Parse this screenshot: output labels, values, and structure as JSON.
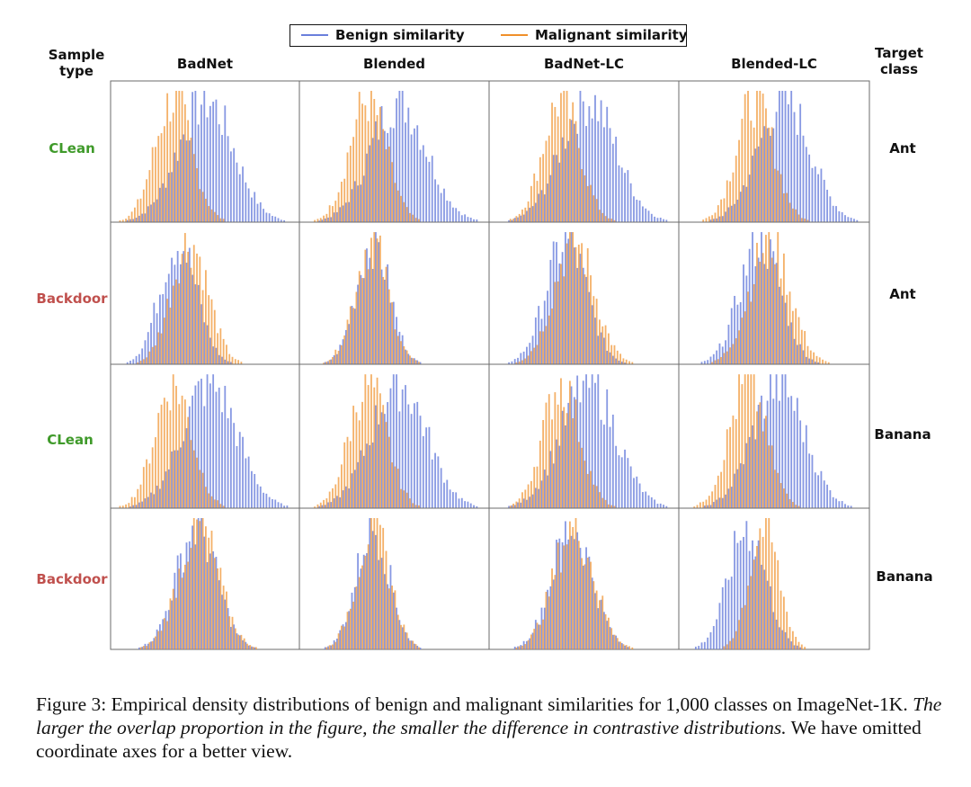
{
  "legend": {
    "benign": "Benign similarity",
    "malignant": "Malignant similarity"
  },
  "headers": {
    "sample_type_line1": "Sample",
    "sample_type_line2": "type",
    "target_class_line1": "Target",
    "target_class_line2": "class",
    "columns": [
      "BadNet",
      "Blended",
      "BadNet-LC",
      "Blended-LC"
    ]
  },
  "rows": [
    {
      "sample_type": "CLean",
      "target_class": "Ant"
    },
    {
      "sample_type": "Backdoor",
      "target_class": "Ant"
    },
    {
      "sample_type": "CLean",
      "target_class": "Banana"
    },
    {
      "sample_type": "Backdoor",
      "target_class": "Banana"
    }
  ],
  "colors": {
    "benign": "#6a7fdc",
    "malignant": "#f0902a",
    "clean_label": "#3f9a2a",
    "backdoor_label": "#c0504d"
  },
  "caption": {
    "plain1": "Figure 3: Empirical density distributions of benign and malignant similarities for 1,000 classes on ImageNet-1K. ",
    "italic": "The larger the overlap proportion in the figure, the smaller the difference in contrastive distributions.",
    "plain2": " We have omitted coordinate axes for a better view."
  },
  "chart_data": {
    "type": "histogram-grid",
    "axes_shown": false,
    "xlim": [
      0,
      1
    ],
    "panels": [
      {
        "row": 0,
        "col": 0,
        "series": [
          {
            "name": "Benign similarity",
            "mean": 0.5,
            "sd": 0.15
          },
          {
            "name": "Malignant similarity",
            "mean": 0.33,
            "sd": 0.1
          }
        ]
      },
      {
        "row": 0,
        "col": 1,
        "series": [
          {
            "name": "Benign similarity",
            "mean": 0.52,
            "sd": 0.15
          },
          {
            "name": "Malignant similarity",
            "mean": 0.36,
            "sd": 0.1
          }
        ]
      },
      {
        "row": 0,
        "col": 2,
        "series": [
          {
            "name": "Benign similarity",
            "mean": 0.52,
            "sd": 0.15
          },
          {
            "name": "Malignant similarity",
            "mean": 0.38,
            "sd": 0.1
          }
        ]
      },
      {
        "row": 0,
        "col": 3,
        "series": [
          {
            "name": "Benign similarity",
            "mean": 0.55,
            "sd": 0.14
          },
          {
            "name": "Malignant similarity",
            "mean": 0.4,
            "sd": 0.1
          }
        ]
      },
      {
        "row": 1,
        "col": 0,
        "series": [
          {
            "name": "Benign similarity",
            "mean": 0.35,
            "sd": 0.1
          },
          {
            "name": "Malignant similarity",
            "mean": 0.42,
            "sd": 0.1
          }
        ]
      },
      {
        "row": 1,
        "col": 1,
        "series": [
          {
            "name": "Benign similarity",
            "mean": 0.38,
            "sd": 0.09
          },
          {
            "name": "Malignant similarity",
            "mean": 0.38,
            "sd": 0.09
          }
        ]
      },
      {
        "row": 1,
        "col": 2,
        "series": [
          {
            "name": "Benign similarity",
            "mean": 0.4,
            "sd": 0.11
          },
          {
            "name": "Malignant similarity",
            "mean": 0.45,
            "sd": 0.11
          }
        ]
      },
      {
        "row": 1,
        "col": 3,
        "series": [
          {
            "name": "Benign similarity",
            "mean": 0.42,
            "sd": 0.11
          },
          {
            "name": "Malignant similarity",
            "mean": 0.48,
            "sd": 0.11
          }
        ]
      },
      {
        "row": 2,
        "col": 0,
        "series": [
          {
            "name": "Benign similarity",
            "mean": 0.52,
            "sd": 0.15
          },
          {
            "name": "Malignant similarity",
            "mean": 0.33,
            "sd": 0.1
          }
        ]
      },
      {
        "row": 2,
        "col": 1,
        "series": [
          {
            "name": "Benign similarity",
            "mean": 0.52,
            "sd": 0.15
          },
          {
            "name": "Malignant similarity",
            "mean": 0.36,
            "sd": 0.1
          }
        ]
      },
      {
        "row": 2,
        "col": 2,
        "series": [
          {
            "name": "Benign similarity",
            "mean": 0.52,
            "sd": 0.15
          },
          {
            "name": "Malignant similarity",
            "mean": 0.38,
            "sd": 0.1
          }
        ]
      },
      {
        "row": 2,
        "col": 3,
        "series": [
          {
            "name": "Benign similarity",
            "mean": 0.52,
            "sd": 0.14
          },
          {
            "name": "Malignant similarity",
            "mean": 0.36,
            "sd": 0.1
          }
        ]
      },
      {
        "row": 3,
        "col": 0,
        "series": [
          {
            "name": "Benign similarity",
            "mean": 0.45,
            "sd": 0.11
          },
          {
            "name": "Malignant similarity",
            "mean": 0.47,
            "sd": 0.11
          }
        ]
      },
      {
        "row": 3,
        "col": 1,
        "series": [
          {
            "name": "Benign similarity",
            "mean": 0.38,
            "sd": 0.09
          },
          {
            "name": "Malignant similarity",
            "mean": 0.39,
            "sd": 0.09
          }
        ]
      },
      {
        "row": 3,
        "col": 2,
        "series": [
          {
            "name": "Benign similarity",
            "mean": 0.43,
            "sd": 0.11
          },
          {
            "name": "Malignant similarity",
            "mean": 0.45,
            "sd": 0.11
          }
        ]
      },
      {
        "row": 3,
        "col": 3,
        "series": [
          {
            "name": "Benign similarity",
            "mean": 0.35,
            "sd": 0.1
          },
          {
            "name": "Malignant similarity",
            "mean": 0.45,
            "sd": 0.08
          }
        ]
      }
    ]
  }
}
